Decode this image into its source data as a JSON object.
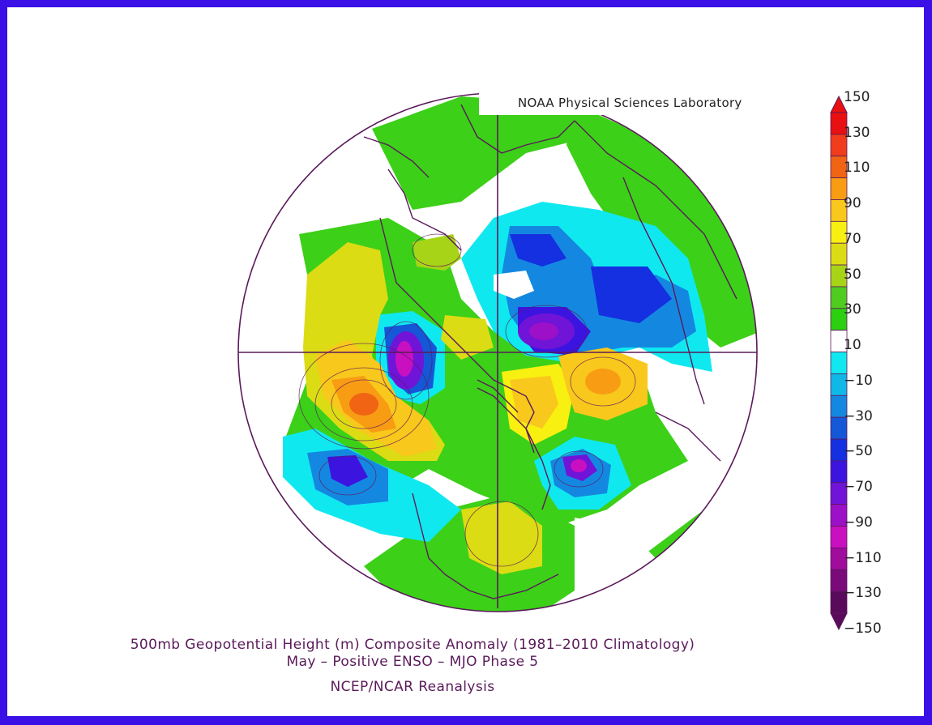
{
  "credit": "NOAA Physical Sciences Laboratory",
  "title_line1": "500mb Geopotential Height (m) Composite Anomaly (1981–2010 Climatology)",
  "title_line2": "May – Positive ENSO – MJO Phase 5",
  "title_line3": "NCEP/NCAR Reanalysis",
  "colorbar": {
    "labels": [
      "150",
      "130",
      "110",
      "90",
      "70",
      "50",
      "30",
      "10",
      "−10",
      "−30",
      "−50",
      "−70",
      "−90",
      "−110",
      "−130",
      "−150"
    ],
    "colors": [
      "#e81010",
      "#f03c1c",
      "#f06414",
      "#f89c14",
      "#f8c81c",
      "#f8f010",
      "#dcdc14",
      "#a8d418",
      "#50cc20",
      "#2cd010",
      "#ffffff",
      "#10e8f0",
      "#10b8e8",
      "#1488e0",
      "#1458d8",
      "#1430e0",
      "#3c14e0",
      "#7014d8",
      "#9c10c8",
      "#c810c0",
      "#a00c9c",
      "#7a0a7a",
      "#5a0a5a"
    ],
    "top_arrow": "#e81010",
    "bottom_arrow": "#5a0a5a"
  },
  "colors": {
    "border": "#3a10e6",
    "coastline": "#5a1a5a"
  }
}
